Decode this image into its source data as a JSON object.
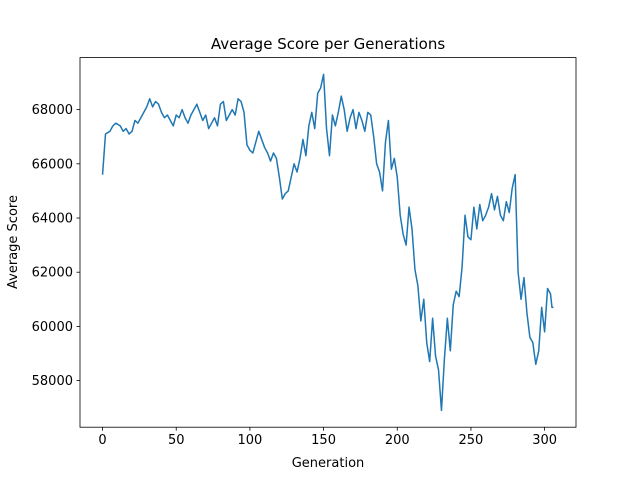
{
  "chart_data": {
    "type": "line",
    "title": "Average Score per Generations",
    "x_label": "Generation",
    "y_label": "Average Score",
    "x": [
      0,
      2,
      5,
      7,
      9,
      12,
      14,
      16,
      18,
      20,
      22,
      24,
      27,
      30,
      32,
      34,
      36,
      38,
      40,
      42,
      44,
      46,
      48,
      50,
      52,
      54,
      56,
      58,
      60,
      62,
      64,
      66,
      68,
      70,
      72,
      74,
      76,
      78,
      80,
      82,
      84,
      86,
      88,
      90,
      92,
      94,
      96,
      98,
      100,
      102,
      104,
      106,
      108,
      110,
      112,
      114,
      116,
      118,
      120,
      122,
      124,
      126,
      128,
      130,
      132,
      134,
      136,
      138,
      140,
      142,
      144,
      146,
      148,
      150,
      152,
      154,
      156,
      158,
      160,
      162,
      164,
      166,
      168,
      170,
      172,
      174,
      176,
      178,
      180,
      182,
      184,
      186,
      188,
      190,
      192,
      194,
      196,
      198,
      200,
      202,
      204,
      206,
      208,
      210,
      212,
      214,
      216,
      218,
      220,
      222,
      224,
      226,
      228,
      230,
      232,
      234,
      236,
      238,
      240,
      242,
      244,
      246,
      248,
      250,
      252,
      254,
      256,
      258,
      260,
      262,
      264,
      266,
      268,
      270,
      272,
      274,
      276,
      278,
      280,
      282,
      284,
      286,
      288,
      290,
      292,
      294,
      296,
      298,
      300,
      302,
      304,
      305,
      306
    ],
    "series": [
      {
        "name": "Average Score",
        "color": "#1f77b4",
        "values": [
          65600,
          67100,
          67200,
          67400,
          67500,
          67400,
          67200,
          67300,
          67100,
          67200,
          67600,
          67500,
          67800,
          68100,
          68400,
          68100,
          68300,
          68200,
          67900,
          67700,
          67800,
          67600,
          67400,
          67800,
          67700,
          68000,
          67700,
          67500,
          67800,
          68000,
          68200,
          67900,
          67600,
          67800,
          67300,
          67500,
          67700,
          67400,
          68200,
          68300,
          67600,
          67800,
          68000,
          67800,
          68400,
          68300,
          67900,
          66700,
          66500,
          66400,
          66800,
          67200,
          66900,
          66600,
          66400,
          66100,
          66400,
          66200,
          65500,
          64700,
          64900,
          65000,
          65500,
          66000,
          65700,
          66200,
          66900,
          66300,
          67400,
          67900,
          67300,
          68600,
          68800,
          69300,
          67300,
          66300,
          67800,
          67400,
          67900,
          68500,
          68000,
          67200,
          67700,
          68000,
          67300,
          67900,
          67600,
          67200,
          67900,
          67800,
          67000,
          66000,
          65700,
          65000,
          66800,
          67600,
          65800,
          66200,
          65500,
          64100,
          63400,
          63000,
          64400,
          63600,
          62100,
          61500,
          60200,
          61000,
          59400,
          58700,
          60300,
          58900,
          58400,
          56900,
          58800,
          60300,
          59100,
          60800,
          61300,
          61100,
          62200,
          64100,
          63300,
          63200,
          64400,
          63600,
          64500,
          63900,
          64100,
          64400,
          64900,
          64300,
          64800,
          64100,
          63900,
          64600,
          64200,
          65100,
          65600,
          62000,
          61000,
          61800,
          60500,
          59600,
          59400,
          58600,
          59100,
          60700,
          59800,
          61400,
          61200,
          60700,
          60700
        ]
      }
    ],
    "xlim": [
      -15.3,
      321.3
    ],
    "ylim": [
      56280,
      69920
    ],
    "xticks": [
      0,
      50,
      100,
      150,
      200,
      250,
      300
    ],
    "yticks": [
      58000,
      60000,
      62000,
      64000,
      66000,
      68000
    ]
  }
}
